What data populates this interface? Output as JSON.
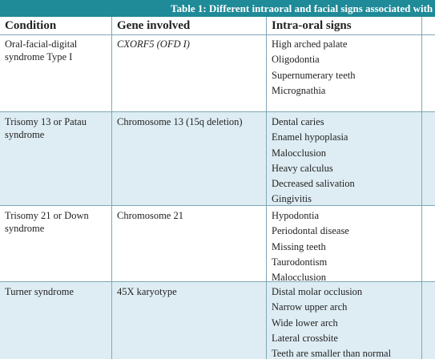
{
  "table": {
    "title": "Table 1: Different intraoral and facial signs associated with",
    "headers": [
      "Condition",
      "Gene involved",
      "Intra-oral signs"
    ],
    "rows": [
      {
        "condition": "Oral-facial-digital syndrome Type I",
        "gene": "CXORF5 (OFD I)",
        "signs": [
          "High arched palate",
          "Oligodontia",
          "Supernumerary teeth",
          "Micrognathia"
        ]
      },
      {
        "condition": "Trisomy 13 or Patau syndrome",
        "gene": "Chromosome 13 (15q deletion)",
        "signs": [
          "Dental caries",
          "Enamel hypoplasia",
          "Malocclusion",
          "Heavy calculus",
          "Decreased salivation",
          "Gingivitis"
        ]
      },
      {
        "condition": "Trisomy 21 or Down syndrome",
        "gene": "Chromosome 21",
        "signs": [
          "Hypodontia",
          "Periodontal disease",
          "Missing teeth",
          "Taurodontism",
          "Malocclusion"
        ]
      },
      {
        "condition": "Turner syndrome",
        "gene": "45X karyotype",
        "signs": [
          "Distal molar occlusion",
          "Narrow upper arch",
          "Wide lower arch",
          "Lateral crossbite",
          "Teeth are smaller than normal"
        ]
      }
    ]
  }
}
